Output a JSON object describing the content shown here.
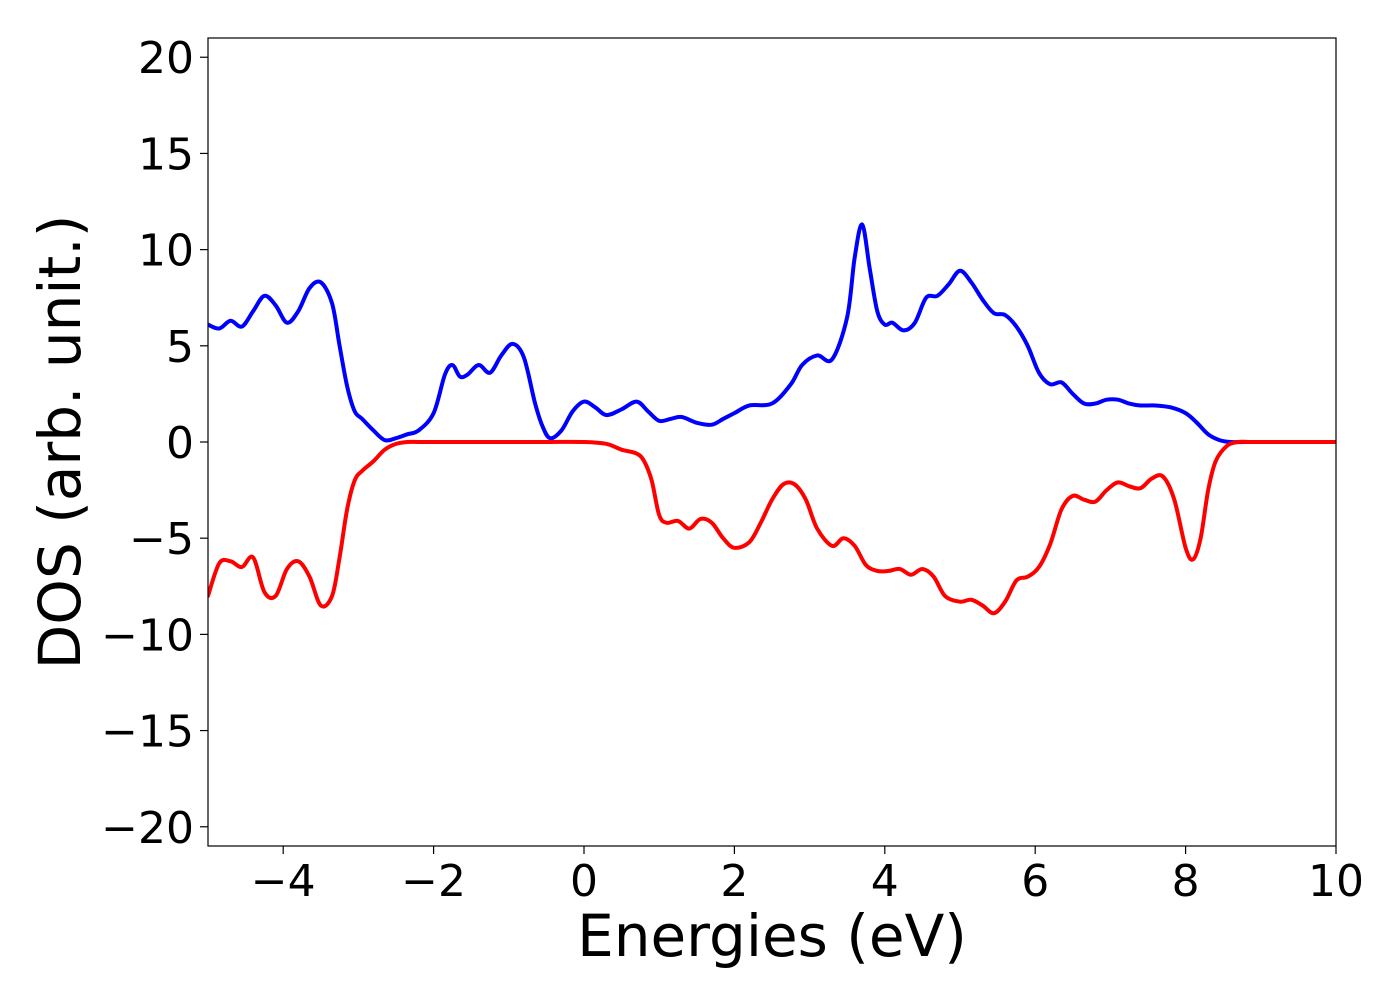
{
  "chart_data": {
    "type": "line",
    "title": "",
    "xlabel": "Energies (eV)",
    "ylabel": "DOS (arb. unit.)",
    "xlim": [
      -5,
      10
    ],
    "ylim": [
      -21,
      21
    ],
    "grid": false,
    "legend": "none",
    "x_ticks": [
      "−4",
      "−2",
      "0",
      "2",
      "4",
      "6",
      "8",
      "10"
    ],
    "x_tick_values": [
      -4,
      -2,
      0,
      2,
      4,
      6,
      8,
      10
    ],
    "y_ticks": [
      "20",
      "15",
      "10",
      "5",
      "0",
      "−5",
      "−10",
      "−15",
      "−20"
    ],
    "y_tick_values": [
      20,
      15,
      10,
      5,
      0,
      -5,
      -10,
      -15,
      -20
    ],
    "series": [
      {
        "color": "#0000ff",
        "x": [
          -5.0,
          -4.85,
          -4.7,
          -4.55,
          -4.4,
          -4.25,
          -4.1,
          -3.95,
          -3.8,
          -3.65,
          -3.5,
          -3.35,
          -3.25,
          -3.15,
          -3.05,
          -2.95,
          -2.8,
          -2.65,
          -2.5,
          -2.35,
          -2.2,
          -2.0,
          -1.85,
          -1.75,
          -1.65,
          -1.55,
          -1.4,
          -1.25,
          -1.1,
          -0.95,
          -0.8,
          -0.65,
          -0.55,
          -0.45,
          -0.3,
          -0.15,
          0.0,
          0.15,
          0.3,
          0.5,
          0.7,
          0.85,
          1.0,
          1.15,
          1.3,
          1.5,
          1.7,
          1.85,
          2.0,
          2.2,
          2.5,
          2.75,
          2.9,
          3.1,
          3.3,
          3.5,
          3.6,
          3.7,
          3.8,
          3.9,
          4.0,
          4.1,
          4.25,
          4.4,
          4.55,
          4.7,
          4.85,
          5.0,
          5.15,
          5.3,
          5.45,
          5.6,
          5.75,
          5.9,
          6.05,
          6.2,
          6.35,
          6.5,
          6.65,
          6.8,
          6.95,
          7.1,
          7.25,
          7.4,
          7.6,
          7.8,
          8.0,
          8.15,
          8.3,
          8.45,
          8.6,
          8.8,
          9.0,
          9.5,
          10.0
        ],
        "y": [
          6.1,
          5.9,
          6.3,
          6.0,
          6.8,
          7.6,
          7.1,
          6.2,
          6.8,
          8.0,
          8.3,
          7.2,
          5.0,
          2.9,
          1.6,
          1.2,
          0.6,
          0.1,
          0.2,
          0.4,
          0.6,
          1.5,
          3.5,
          4.0,
          3.4,
          3.5,
          4.0,
          3.6,
          4.5,
          5.1,
          4.4,
          2.0,
          0.8,
          0.2,
          0.6,
          1.6,
          2.1,
          1.8,
          1.4,
          1.7,
          2.1,
          1.6,
          1.1,
          1.2,
          1.3,
          1.0,
          0.9,
          1.2,
          1.5,
          1.9,
          2.0,
          3.0,
          4.0,
          4.5,
          4.3,
          6.5,
          9.6,
          11.3,
          9.0,
          6.8,
          6.1,
          6.2,
          5.8,
          6.2,
          7.5,
          7.6,
          8.2,
          8.9,
          8.3,
          7.4,
          6.7,
          6.6,
          6.0,
          5.0,
          3.6,
          3.0,
          3.1,
          2.5,
          2.0,
          2.0,
          2.2,
          2.2,
          2.0,
          1.9,
          1.9,
          1.8,
          1.5,
          1.0,
          0.4,
          0.1,
          0.0,
          0.0,
          0.0,
          0.0,
          0.0
        ]
      },
      {
        "color": "#ff0000",
        "x": [
          -5.0,
          -4.85,
          -4.7,
          -4.55,
          -4.4,
          -4.25,
          -4.1,
          -3.95,
          -3.8,
          -3.65,
          -3.5,
          -3.35,
          -3.25,
          -3.15,
          -3.05,
          -2.95,
          -2.8,
          -2.65,
          -2.5,
          -2.35,
          -2.2,
          -2.0,
          -1.5,
          -1.0,
          -0.5,
          0.0,
          0.3,
          0.5,
          0.7,
          0.8,
          0.9,
          1.0,
          1.1,
          1.25,
          1.4,
          1.55,
          1.7,
          1.85,
          2.0,
          2.2,
          2.35,
          2.5,
          2.65,
          2.8,
          2.95,
          3.1,
          3.3,
          3.45,
          3.6,
          3.75,
          3.9,
          4.05,
          4.2,
          4.35,
          4.5,
          4.65,
          4.8,
          5.0,
          5.15,
          5.3,
          5.45,
          5.6,
          5.75,
          5.9,
          6.05,
          6.2,
          6.35,
          6.5,
          6.65,
          6.8,
          6.95,
          7.1,
          7.25,
          7.4,
          7.55,
          7.7,
          7.85,
          8.0,
          8.1,
          8.2,
          8.3,
          8.4,
          8.55,
          8.7,
          8.85,
          9.0,
          9.5,
          10.0
        ],
        "y": [
          -8.0,
          -6.3,
          -6.2,
          -6.5,
          -6.0,
          -7.8,
          -8.0,
          -6.6,
          -6.2,
          -7.0,
          -8.5,
          -8.0,
          -6.0,
          -3.5,
          -2.0,
          -1.5,
          -1.0,
          -0.4,
          -0.1,
          0.0,
          0.0,
          0.0,
          0.0,
          0.0,
          0.0,
          0.0,
          -0.1,
          -0.4,
          -0.6,
          -1.0,
          -2.0,
          -3.8,
          -4.2,
          -4.1,
          -4.5,
          -4.0,
          -4.2,
          -5.0,
          -5.5,
          -5.2,
          -4.2,
          -3.0,
          -2.2,
          -2.2,
          -3.0,
          -4.5,
          -5.4,
          -5.0,
          -5.4,
          -6.4,
          -6.7,
          -6.7,
          -6.6,
          -6.9,
          -6.6,
          -7.0,
          -8.0,
          -8.3,
          -8.2,
          -8.5,
          -8.9,
          -8.3,
          -7.2,
          -7.0,
          -6.5,
          -5.3,
          -3.5,
          -2.8,
          -3.0,
          -3.1,
          -2.5,
          -2.1,
          -2.3,
          -2.4,
          -1.9,
          -1.8,
          -3.0,
          -5.5,
          -6.1,
          -5.0,
          -2.5,
          -1.0,
          -0.2,
          0.0,
          0.0,
          0.0,
          0.0,
          0.0
        ]
      }
    ]
  }
}
